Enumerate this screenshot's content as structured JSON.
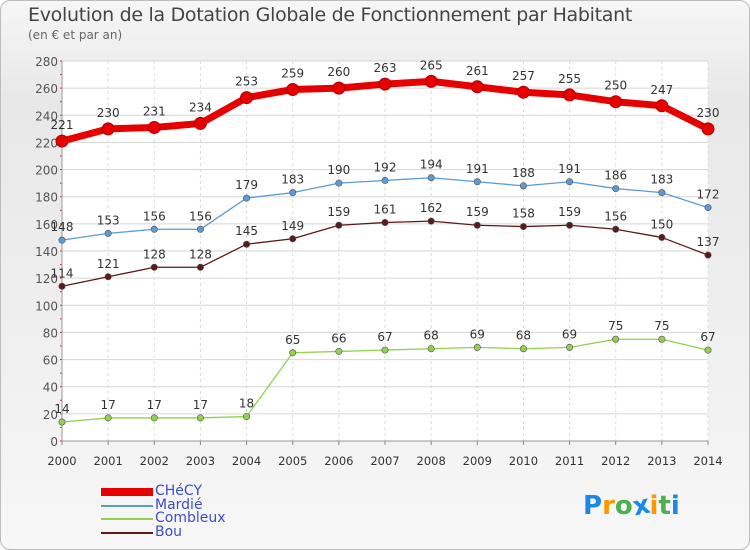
{
  "chart_data": {
    "type": "line",
    "title": "Evolution de la Dotation Globale de Fonctionnement par Habitant",
    "subtitle": "(en € et par an)",
    "xlabel": "",
    "ylabel": "",
    "ylim": [
      0,
      280
    ],
    "yticks": [
      0,
      20,
      40,
      60,
      80,
      100,
      120,
      140,
      160,
      180,
      200,
      220,
      240,
      260,
      280
    ],
    "grid": true,
    "x": [
      "2000",
      "2001",
      "2002",
      "2003",
      "2004",
      "2005",
      "2006",
      "2007",
      "2008",
      "2009",
      "2010",
      "2011",
      "2012",
      "2013",
      "2014"
    ],
    "series": [
      {
        "name": "CHéCY",
        "color": "#e60000",
        "values": [
          221,
          230,
          231,
          234,
          253,
          259,
          260,
          263,
          265,
          261,
          257,
          255,
          250,
          247,
          230
        ]
      },
      {
        "name": "Mardié",
        "color": "#5b9bd5",
        "values": [
          148,
          153,
          156,
          156,
          179,
          183,
          190,
          192,
          194,
          191,
          188,
          191,
          186,
          183,
          172
        ]
      },
      {
        "name": "Combleux",
        "color": "#92d050",
        "values": [
          14,
          17,
          17,
          17,
          18,
          65,
          66,
          67,
          68,
          69,
          68,
          69,
          75,
          75,
          67
        ]
      },
      {
        "name": "Bou",
        "color": "#5c1a1a",
        "values": [
          114,
          121,
          128,
          128,
          145,
          149,
          159,
          161,
          162,
          159,
          158,
          159,
          156,
          150,
          137
        ]
      }
    ],
    "legend_position": "bottom-left"
  },
  "logo": {
    "letters": [
      "P",
      "r",
      "o",
      "x",
      "i",
      "t",
      "i"
    ],
    "colors": [
      "#1e88e5",
      "#ff9800",
      "#4caf50",
      "#1e88e5",
      "#ff9800",
      "#4caf50",
      "#1e88e5"
    ]
  }
}
